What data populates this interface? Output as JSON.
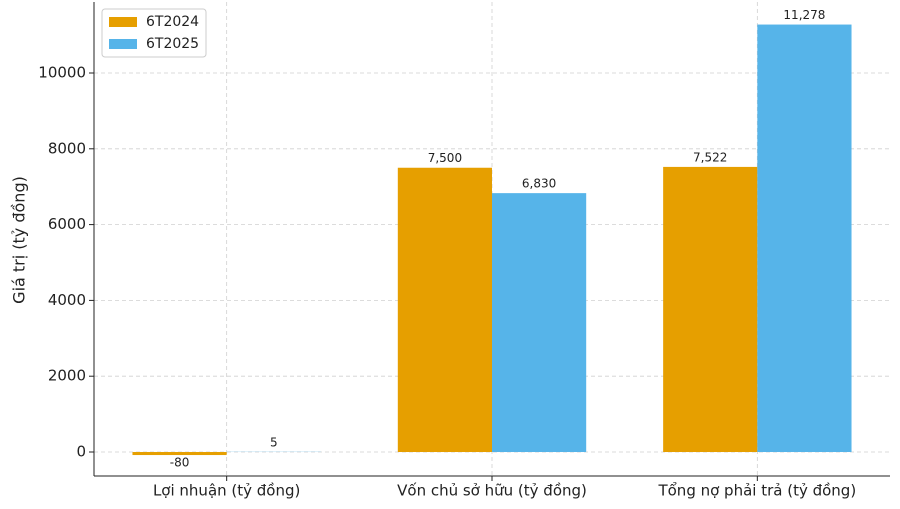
{
  "chart_data": {
    "type": "bar",
    "y_label": "Giá trị (tỷ đồng)",
    "categories": [
      "Lợi nhuận (tỷ đồng)",
      "Vốn chủ sở hữu (tỷ đồng)",
      "Tổng nợ phải trả (tỷ đồng)"
    ],
    "series": [
      {
        "name": "6T2024",
        "color": "#e69f00",
        "values": [
          -80,
          7500,
          7522
        ],
        "value_labels": [
          "-80",
          "7,500",
          "7,522"
        ]
      },
      {
        "name": "6T2025",
        "color": "#56b4e9",
        "values": [
          5,
          6830,
          11278
        ],
        "value_labels": [
          "5",
          "6,830",
          "11,278"
        ]
      }
    ],
    "ylim": [
      -633,
      11873
    ],
    "yticks": [
      0,
      2000,
      4000,
      6000,
      8000,
      10000
    ],
    "grid": true,
    "legend": "upper-left"
  }
}
